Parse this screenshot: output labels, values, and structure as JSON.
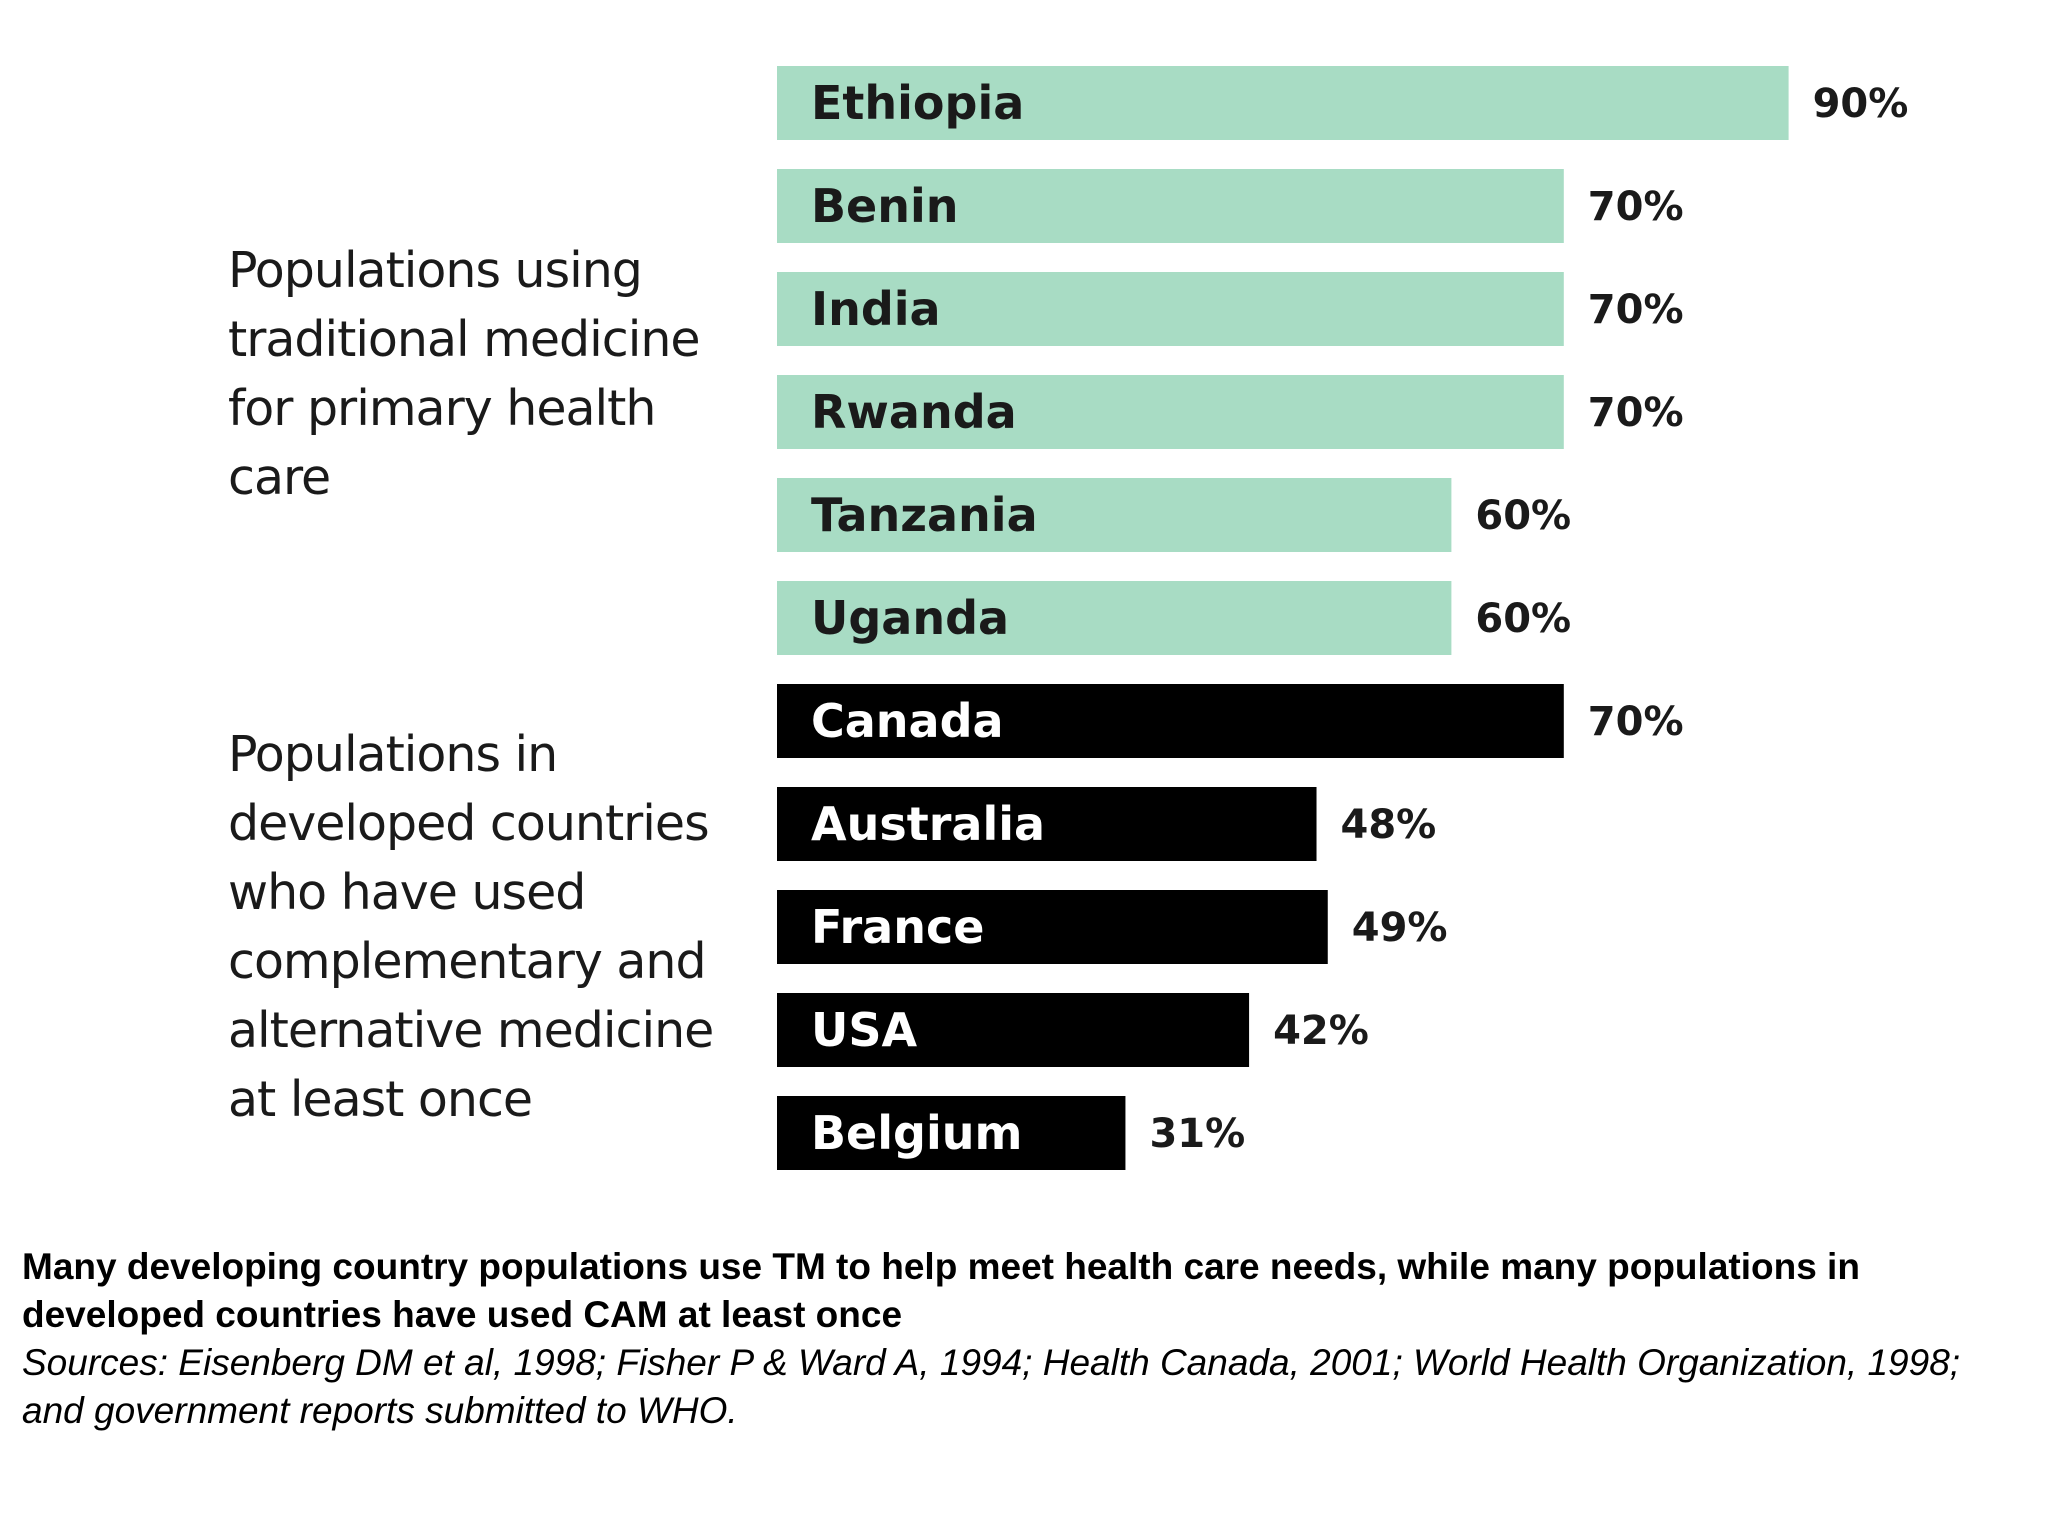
{
  "chart_data": {
    "type": "bar",
    "orientation": "horizontal",
    "groups": [
      {
        "label": "Populations using\ntraditional medicine\nfor primary health\ncare",
        "color": "#a8dcc4",
        "text_color": "#1a1a1a",
        "bars": [
          {
            "category": "Ethiopia",
            "value": 90,
            "label": "90%"
          },
          {
            "category": "Benin",
            "value": 70,
            "label": "70%"
          },
          {
            "category": "India",
            "value": 70,
            "label": "70%"
          },
          {
            "category": "Rwanda",
            "value": 70,
            "label": "70%"
          },
          {
            "category": "Tanzania",
            "value": 60,
            "label": "60%"
          },
          {
            "category": "Uganda",
            "value": 60,
            "label": "60%"
          }
        ]
      },
      {
        "label": "Populations in\ndeveloped countries\nwho have used\ncomplementary and\nalternative medicine\nat least once",
        "color": "#000000",
        "text_color": "#ffffff",
        "bars": [
          {
            "category": "Canada",
            "value": 70,
            "label": "70%"
          },
          {
            "category": "Australia",
            "value": 48,
            "label": "48%"
          },
          {
            "category": "France",
            "value": 49,
            "label": "49%"
          },
          {
            "category": "USA",
            "value": 42,
            "label": "42%"
          },
          {
            "category": "Belgium",
            "value": 31,
            "label": "31%"
          }
        ]
      }
    ],
    "xlim": [
      0,
      90
    ],
    "grid": false
  },
  "caption": {
    "title": "Many developing country populations use TM to help meet health care needs, while many populations in developed countries have used CAM at least once",
    "sources": "Sources: Eisenberg DM et al, 1998; Fisher P & Ward A, 1994; Health Canada, 2001; World Health Organization, 1998; and government reports submitted to WHO."
  }
}
